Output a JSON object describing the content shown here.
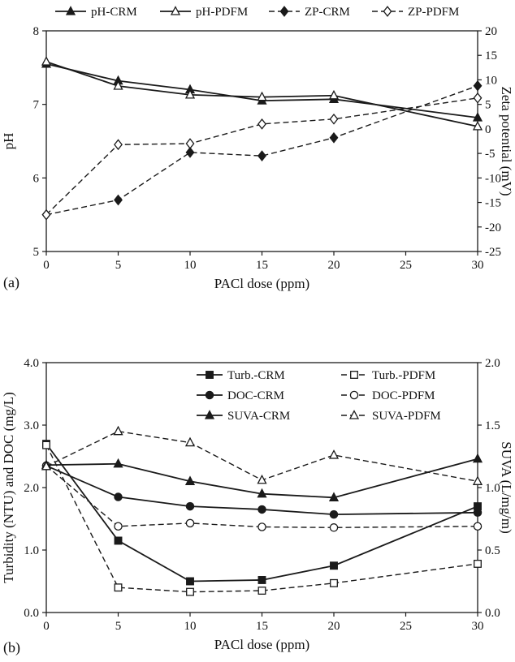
{
  "figure": {
    "panel_a_label": "(a)",
    "panel_b_label": "(b)",
    "ink_color": "#1a1a1a",
    "background": "#ffffff"
  },
  "chart_data": [
    {
      "type": "line",
      "panel": "a",
      "xlabel": "PACl dose (ppm)",
      "ylabel_left": "pH",
      "ylabel_right": "Zeta potential (mV)",
      "xlim": [
        0,
        30
      ],
      "xticks": [
        0,
        5,
        10,
        15,
        20,
        25,
        30
      ],
      "xtick_decimals": 0,
      "ylim_left": [
        5,
        8
      ],
      "yticks_left": [
        5,
        6,
        7,
        8
      ],
      "ytick_decimals_left": 0,
      "ylim_right": [
        -25,
        20
      ],
      "yticks_right": [
        -25,
        -20,
        -15,
        -10,
        -5,
        0,
        5,
        10,
        15,
        20
      ],
      "ytick_decimals_right": 0,
      "grid": false,
      "legend_position": "top",
      "x": [
        0,
        5,
        10,
        15,
        20,
        30
      ],
      "series": [
        {
          "name": "pH-CRM",
          "axis": "left",
          "marker": "triangle",
          "fill": "filled",
          "line": "solid",
          "values": [
            7.55,
            7.32,
            7.2,
            7.05,
            7.07,
            6.82
          ]
        },
        {
          "name": "pH-PDFM",
          "axis": "left",
          "marker": "triangle",
          "fill": "open",
          "line": "solid",
          "values": [
            7.58,
            7.25,
            7.13,
            7.1,
            7.12,
            6.7
          ]
        },
        {
          "name": "ZP-CRM",
          "axis": "right",
          "marker": "diamond",
          "fill": "filled",
          "line": "dashed",
          "values": [
            -17.5,
            -14.5,
            -4.8,
            -5.5,
            -1.8,
            8.8
          ]
        },
        {
          "name": "ZP-PDFM",
          "axis": "right",
          "marker": "diamond",
          "fill": "open",
          "line": "dashed",
          "values": [
            -17.5,
            -3.2,
            -3.0,
            1.0,
            2.0,
            6.3
          ]
        }
      ]
    },
    {
      "type": "line",
      "panel": "b",
      "xlabel": "PACl dose (ppm)",
      "ylabel_left": "Turbidity (NTU) and DOC (mg/L)",
      "ylabel_right": "SUVA (L/mg/m)",
      "xlim": [
        0,
        30
      ],
      "xticks": [
        0,
        5,
        10,
        15,
        20,
        25,
        30
      ],
      "xtick_decimals": 0,
      "ylim_left": [
        0,
        4
      ],
      "yticks_left": [
        0,
        1,
        2,
        3,
        4
      ],
      "ytick_decimals_left": 1,
      "ylim_right": [
        0,
        2
      ],
      "yticks_right": [
        0,
        0.5,
        1,
        1.5,
        2
      ],
      "ytick_decimals_right": 1,
      "grid": false,
      "legend_position": "inside-top-right",
      "x": [
        0,
        5,
        10,
        15,
        20,
        30
      ],
      "series": [
        {
          "name": "Turb.-CRM",
          "axis": "left",
          "marker": "square",
          "fill": "filled",
          "line": "solid",
          "values": [
            2.7,
            1.15,
            0.5,
            0.52,
            0.75,
            1.7
          ]
        },
        {
          "name": "Turb.-PDFM",
          "axis": "left",
          "marker": "square",
          "fill": "open",
          "line": "dashed",
          "values": [
            2.68,
            0.4,
            0.33,
            0.35,
            0.47,
            0.78
          ]
        },
        {
          "name": "DOC-CRM",
          "axis": "left",
          "marker": "circle",
          "fill": "filled",
          "line": "solid",
          "values": [
            2.35,
            1.85,
            1.7,
            1.65,
            1.57,
            1.6
          ]
        },
        {
          "name": "DOC-PDFM",
          "axis": "left",
          "marker": "circle",
          "fill": "open",
          "line": "dashed",
          "values": [
            2.35,
            1.38,
            1.43,
            1.37,
            1.36,
            1.38
          ]
        },
        {
          "name": "SUVA-CRM",
          "axis": "right",
          "marker": "triangle",
          "fill": "filled",
          "line": "solid",
          "values": [
            1.18,
            1.19,
            1.05,
            0.95,
            0.92,
            1.23
          ]
        },
        {
          "name": "SUVA-PDFM",
          "axis": "right",
          "marker": "triangle",
          "fill": "open",
          "line": "dashed",
          "values": [
            1.17,
            1.45,
            1.36,
            1.06,
            1.26,
            1.05
          ]
        }
      ]
    }
  ]
}
